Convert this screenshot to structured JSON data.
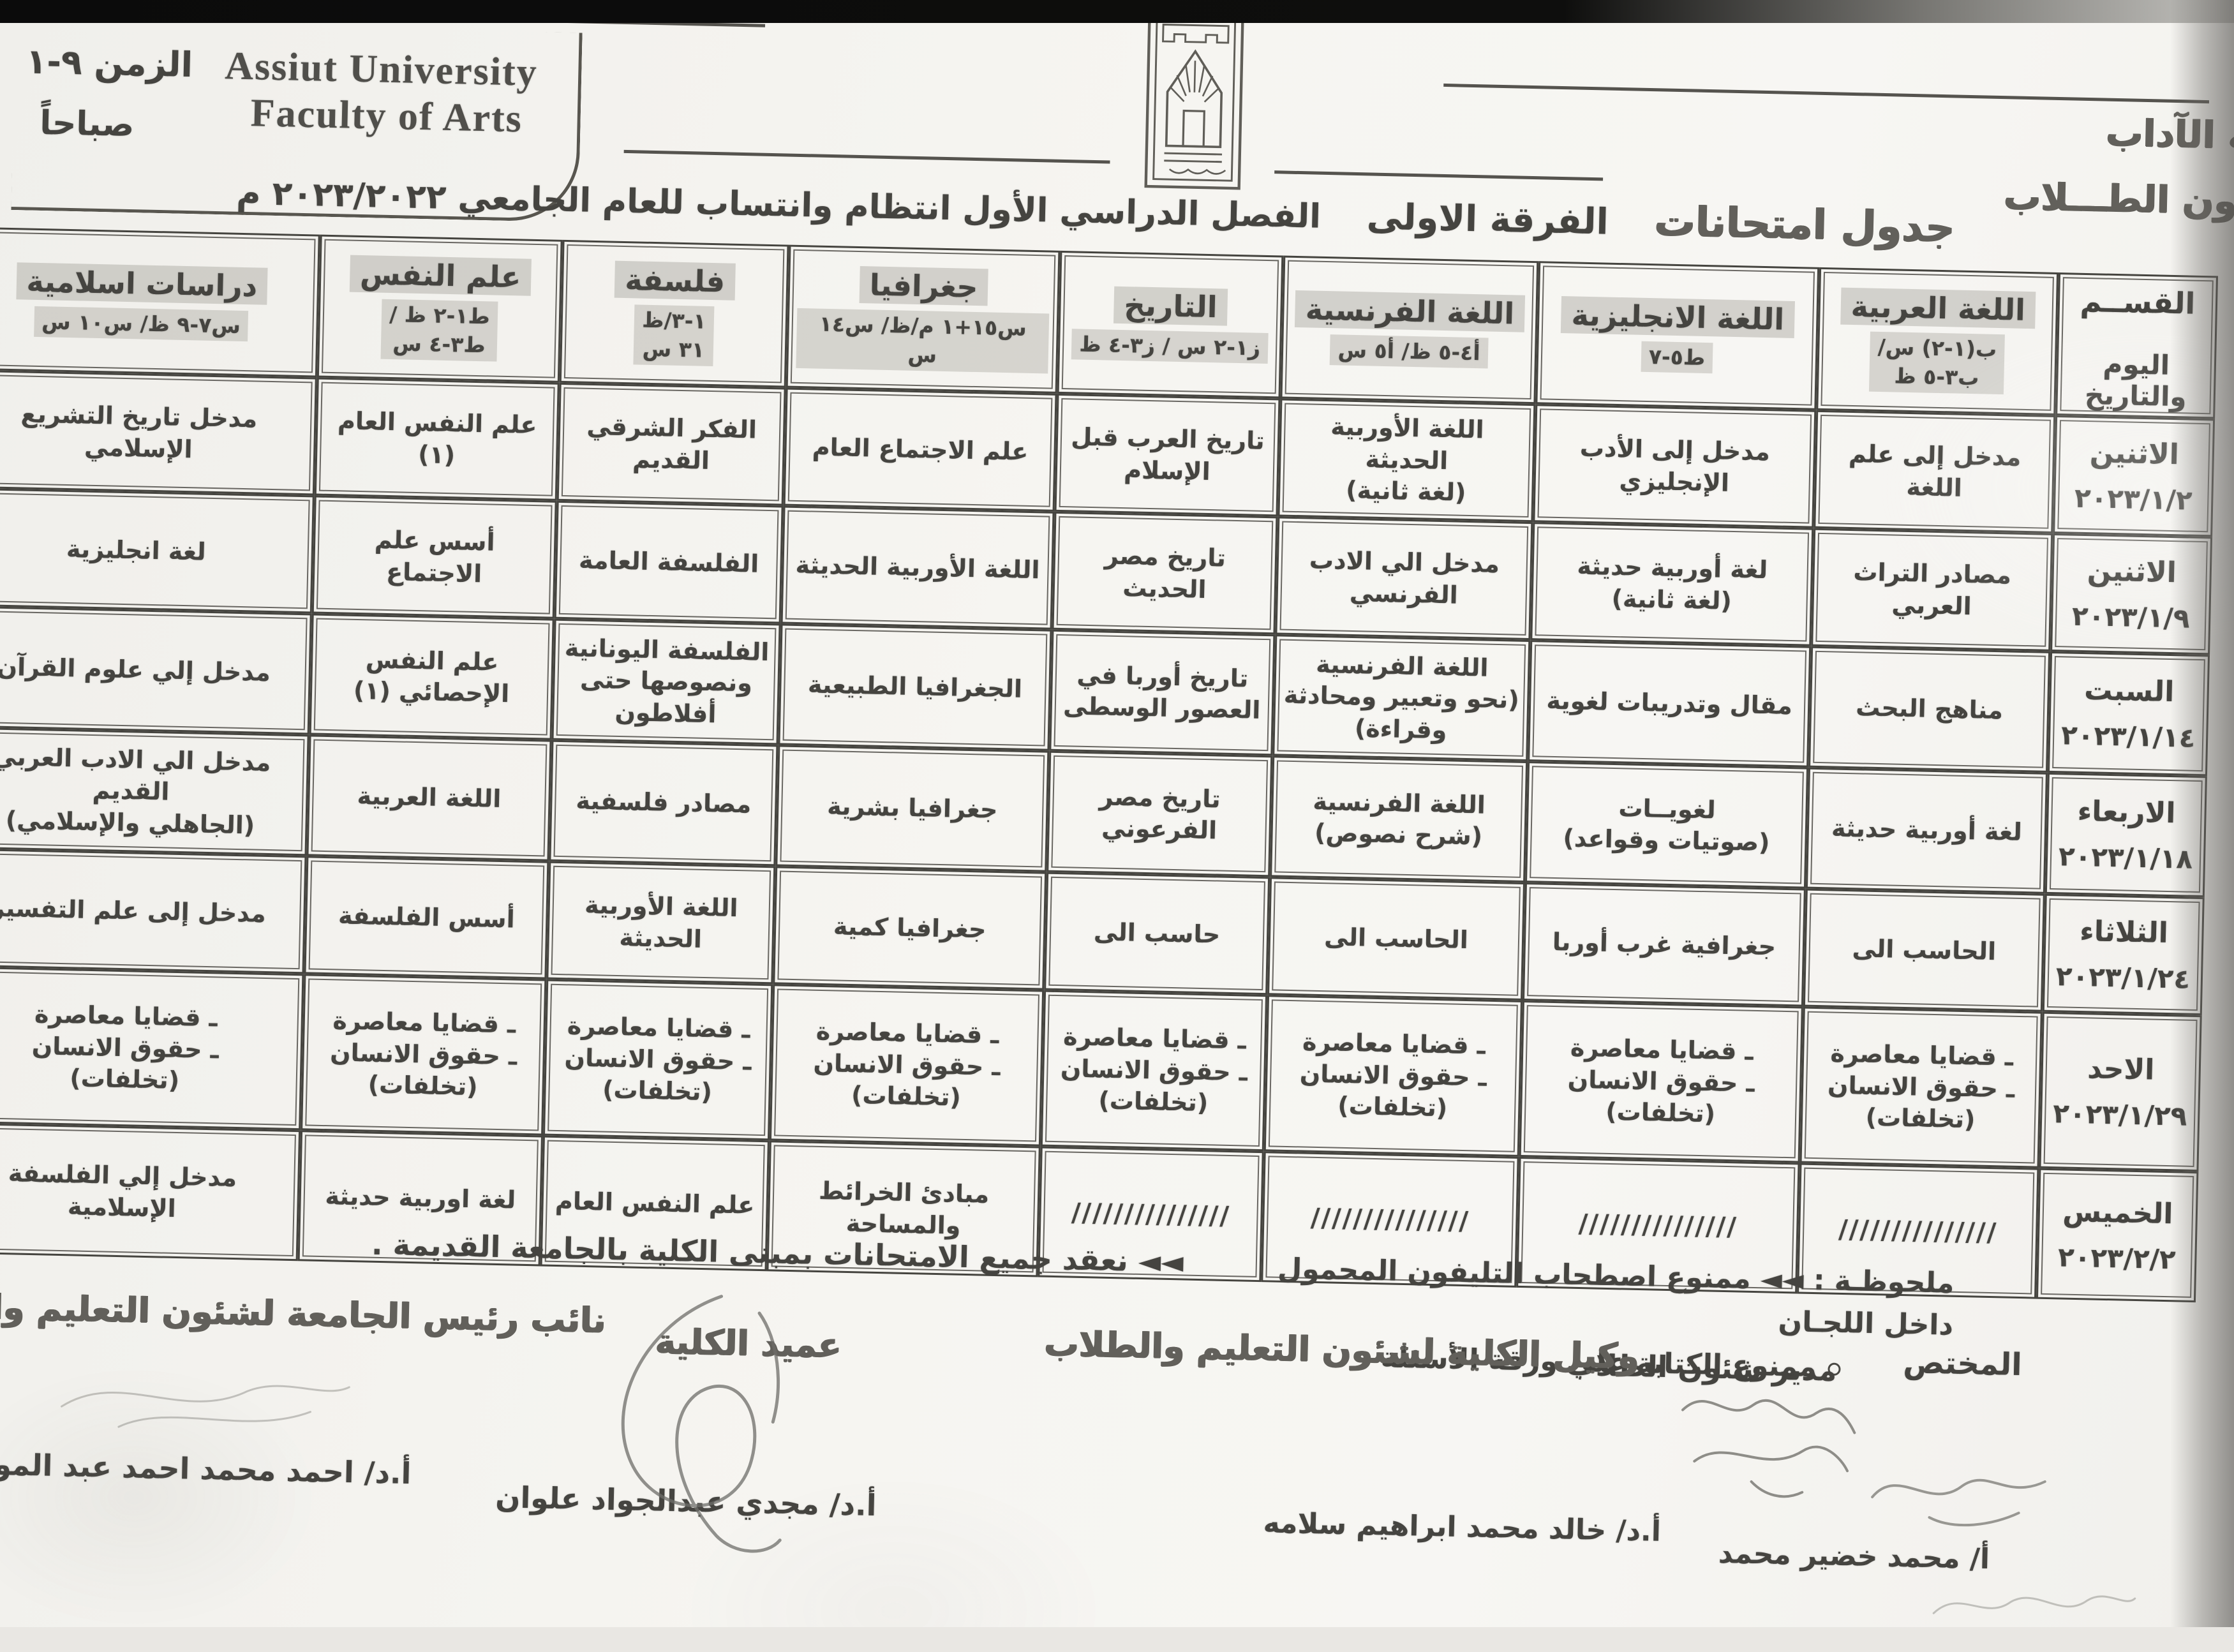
{
  "header": {
    "time_label": "الزمن ٩-١",
    "time_period": "صباحاً",
    "university_en_1": "Assiut University",
    "university_en_2": "Faculty of Arts",
    "faculty_ar_partial": "ـة الآداب",
    "student_affairs_partial": "ـئون الطـــلاب",
    "exam_schedule_label": "جدول امتحانات",
    "grade_label": "الفرقة الاولى",
    "semester_title": "الفصل الدراسي الأول  انتظام وانتساب للعام الجامعي ٢٠٢٣/٢٠٢٢ م"
  },
  "table": {
    "corner_top": "القســم",
    "corner_bottom": "اليوم والتاريخ",
    "columns": [
      {
        "name": "اللغة العربية",
        "time": "ب(١-٢) س/\nب٣-٥ ظ"
      },
      {
        "name": "اللغة الانجليزية",
        "time": "ط٥-٧"
      },
      {
        "name": "اللغة الفرنسية",
        "time": "أ٤-٥ ظ/ أ٥ س"
      },
      {
        "name": "التاريخ",
        "time": "ز١-٢ س / ز٣-٤ ظ"
      },
      {
        "name": "جغرافيا",
        "time": "س١٥+١ م/ظ/ س١٤ س"
      },
      {
        "name": "فلسفة",
        "time": "١-٣/ظ\n٣١ س"
      },
      {
        "name": "علم النفس",
        "time": "ط١-٢ ظ /\nط٣-٤ س"
      },
      {
        "name": "دراسات اسلامية",
        "time": "س٧-٩ ظ/ س١٠ س"
      }
    ],
    "rows": [
      {
        "day": "الاثنين",
        "date": "٢٠٢٣/١/٢",
        "cells": [
          "مدخل إلى علم اللغة",
          "مدخل إلى الأدب الإنجليزي",
          "اللغة الأوربية الحديثة\n(لغة ثانية)",
          "تاريخ العرب قبل الإسلام",
          "علم الاجتماع العام",
          "الفكر الشرقي القديم",
          "علم النفس العام (١)",
          "مدخل تاريخ التشريع الإسلامي"
        ]
      },
      {
        "day": "الاثنين",
        "date": "٢٠٢٣/١/٩",
        "cells": [
          "مصادر التراث العربي",
          "لغة أوربية حديثة\n(لغة ثانية)",
          "مدخل الي الادب الفرنسي",
          "تاريخ مصر الحديث",
          "اللغة الأوربية الحديثة",
          "الفلسفة العامة",
          "أسس علم الاجتماع",
          "لغة انجليزية"
        ]
      },
      {
        "day": "السبت",
        "date": "٢٠٢٣/١/١٤",
        "cells": [
          "مناهج البحث",
          "مقال وتدريبات لغوية",
          "اللغة الفرنسية\n(نحو وتعبير ومحادثة وقراءة)",
          "تاريخ أوربا في العصور الوسطى",
          "الجغرافيا الطبيعية",
          "الفلسفة اليونانية ونصوصها حتى أفلاطون",
          "علم النفس الإحصائي (١)",
          "مدخل إلي علوم القرآن"
        ]
      },
      {
        "day": "الاربعاء",
        "date": "٢٠٢٣/١/١٨",
        "cells": [
          "لغة أوربية حديثة",
          "لغويــات\n(صوتيات وقواعد)",
          "اللغة الفرنسية\n(شرح نصوص)",
          "تاريخ مصر الفرعوني",
          "جغرافيا بشرية",
          "مصادر فلسفية",
          "اللغة العربية",
          "مدخل الي الادب العربي القديم\n(الجاهلي والإسلامي)"
        ]
      },
      {
        "day": "الثلاثاء",
        "date": "٢٠٢٣/١/٢٤",
        "cells": [
          "الحاسب الى",
          "جغرافية غرب أوربا",
          "الحاسب الى",
          "حاسب الى",
          "جغرافيا كمية",
          "اللغة الأوربية الحديثة",
          "أسس الفلسفة",
          "مدخل إلى علم التفسير"
        ]
      },
      {
        "day": "الاحد",
        "date": "٢٠٢٣/١/٢٩",
        "cells": [
          "ـ قضايا معاصرة\nـ حقوق الانسان\n(تخلفات)",
          "ـ قضايا معاصرة\nـ حقوق الانسان\n(تخلفات)",
          "ـ قضايا معاصرة\nـ حقوق الانسان\n(تخلفات)",
          "ـ قضايا معاصرة\nـ حقوق الانسان\n(تخلفات)",
          "ـ قضايا معاصرة\nـ حقوق الانسان\n(تخلفات)",
          "ـ قضايا معاصرة\nـ حقوق الانسان\n(تخلفات)",
          "ـ قضايا معاصرة\nـ حقوق الانسان\n(تخلفات)",
          "ـ قضايا معاصرة\nـ حقوق الانسان\n(تخلفات)"
        ]
      },
      {
        "day": "الخميس",
        "date": "٢٠٢٣/٢/٢",
        "cells": [
          "///////////////",
          "///////////////",
          "///////////////",
          "///////////////",
          "مبادئ الخرائط\nوالمساحة",
          "علم النفس العام",
          "لغة اوربية حديثة",
          "مدخل إلي الفلسفة\nالإسلامية"
        ]
      }
    ]
  },
  "notes": {
    "venue_note": "◄◄ نعقد جميع الامتحانات بمبنى الكلية بالجامعة القديمة .",
    "remark_label": "ملحوظـة :",
    "remark_1": "◄◄ ممنوع اصطحاب التليفون المحمول داخل اللجـان",
    "remark_2": "ممنوع الكتابة علي ورقة الأسئلة ."
  },
  "signatures": {
    "specialist_label": "المختص",
    "blocks": [
      {
        "role": "مدير شئون الطلاب",
        "name": "أ/ محمد خضير محمد"
      },
      {
        "role": "وكيل الكلية لشئون التعليم والطلاب",
        "name": "أ.د/ خالد محمد ابراهيم سلامه"
      },
      {
        "role": "عميد الكلية",
        "name": "أ.د/ مجدي عبدالجواد علوان"
      },
      {
        "role": "نائب رئيس الجامعة لشئون التعليم والطلاب",
        "name": "أ.د/ احمد محمد احمد عبد المولى"
      }
    ]
  }
}
